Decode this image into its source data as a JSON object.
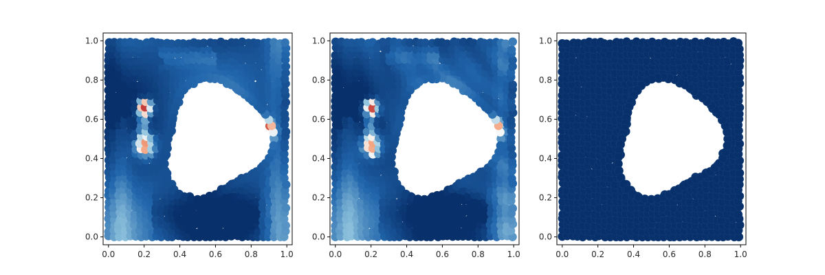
{
  "chart_data": [
    {
      "type": "scatter",
      "name": "panel-1",
      "colormap": "RdBu_r",
      "xlim": [
        -0.03,
        1.03
      ],
      "ylim": [
        -0.04,
        1.04
      ],
      "x_ticks": [
        "0.0",
        "0.2",
        "0.4",
        "0.6",
        "0.8",
        "1.0"
      ],
      "y_ticks": [
        "0.0",
        "0.2",
        "0.4",
        "0.6",
        "0.8",
        "1.0"
      ],
      "grid_spacing": 0.03,
      "hole": {
        "center": [
          0.6,
          0.5
        ],
        "mean_radius": 0.285,
        "boundary_points": 60
      },
      "field_note": "Values in [-1, 1]: mostly negative (blue) in the domain, positive (red) near hole boundary at x~0.2 and x~0.88, y~0.5-0.65"
    },
    {
      "type": "scatter",
      "name": "panel-2",
      "colormap": "RdBu_r",
      "xlim": [
        -0.03,
        1.03
      ],
      "ylim": [
        -0.04,
        1.04
      ],
      "x_ticks": [
        "0.0",
        "0.2",
        "0.4",
        "0.6",
        "0.8",
        "1.0"
      ],
      "y_ticks": [
        "0.0",
        "0.2",
        "0.4",
        "0.6",
        "0.8",
        "1.0"
      ],
      "grid_spacing": 0.03,
      "hole": {
        "center": [
          0.6,
          0.5
        ],
        "mean_radius": 0.285,
        "boundary_points": 60
      },
      "field_note": "Nearly identical field to panel-1"
    },
    {
      "type": "scatter",
      "name": "panel-3",
      "colormap": "single",
      "color": "#08306b",
      "xlim": [
        -0.03,
        1.03
      ],
      "ylim": [
        -0.04,
        1.04
      ],
      "x_ticks": [
        "0.0",
        "0.2",
        "0.4",
        "0.6",
        "0.8",
        "1.0"
      ],
      "y_ticks": [
        "0.0",
        "0.2",
        "0.4",
        "0.6",
        "0.8",
        "1.0"
      ],
      "grid_spacing": 0.03,
      "hole": {
        "center": [
          0.6,
          0.5
        ],
        "mean_radius": 0.285,
        "boundary_points": 60
      },
      "field_note": "All points uniform dark navy"
    }
  ],
  "colors": {
    "dark_blue": "#08306b",
    "mid_blue": "#2166ac",
    "light_blue": "#92c5de",
    "near_white": "#f7f7f7",
    "light_red": "#f4a582",
    "mid_red": "#d6604d",
    "dark_red": "#b2182b",
    "deep_red": "#67001f"
  }
}
